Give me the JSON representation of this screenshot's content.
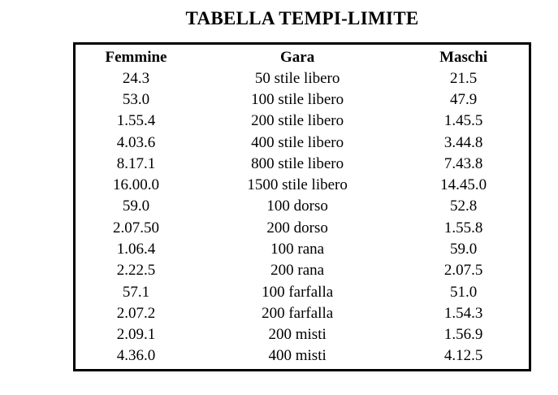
{
  "title": "TABELLA TEMPI-LIMITE",
  "table": {
    "headers": [
      "Femmine",
      "Gara",
      "Maschi"
    ],
    "rows": [
      [
        "24.3",
        "50 stile libero",
        "21.5"
      ],
      [
        "53.0",
        "100 stile libero",
        "47.9"
      ],
      [
        "1.55.4",
        "200 stile libero",
        "1.45.5"
      ],
      [
        "4.03.6",
        "400 stile libero",
        "3.44.8"
      ],
      [
        "8.17.1",
        "800 stile libero",
        "7.43.8"
      ],
      [
        "16.00.0",
        "1500 stile libero",
        "14.45.0"
      ],
      [
        "59.0",
        "100 dorso",
        "52.8"
      ],
      [
        "2.07.50",
        "200 dorso",
        "1.55.8"
      ],
      [
        "1.06.4",
        "100 rana",
        "59.0"
      ],
      [
        "2.22.5",
        "200 rana",
        "2.07.5"
      ],
      [
        "57.1",
        "100 farfalla",
        "51.0"
      ],
      [
        "2.07.2",
        "200 farfalla",
        "1.54.3"
      ],
      [
        "2.09.1",
        "200 misti",
        "1.56.9"
      ],
      [
        "4.36.0",
        "400 misti",
        "4.12.5"
      ]
    ]
  },
  "colors": {
    "background": "#ffffff",
    "text": "#000000",
    "table_border": "#000000"
  }
}
